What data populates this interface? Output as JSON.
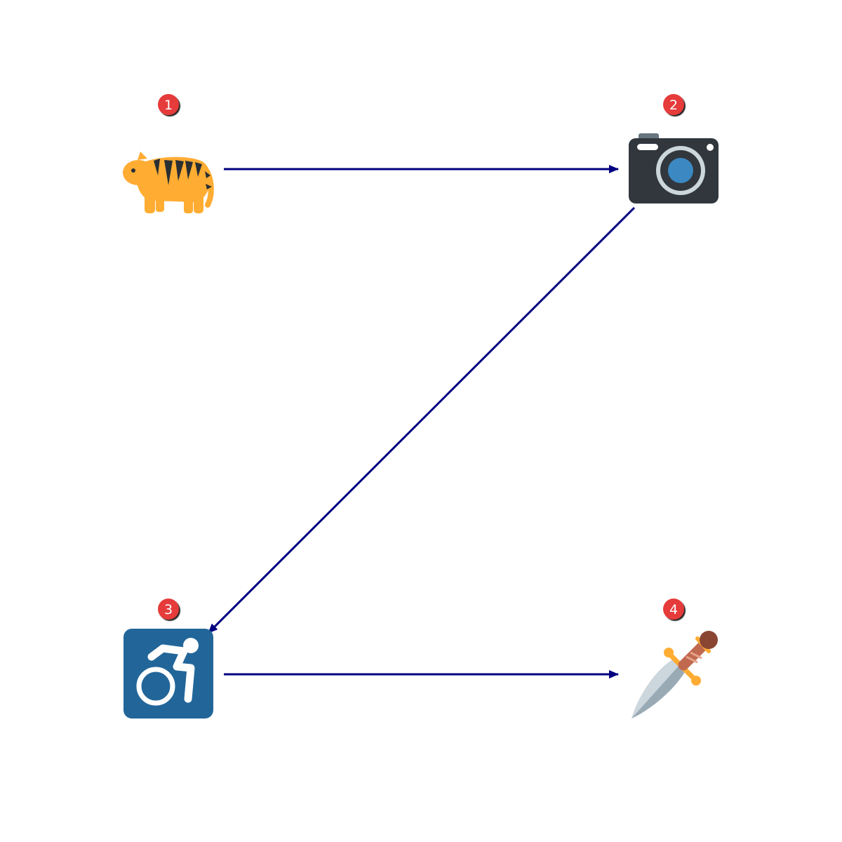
{
  "diagram": {
    "background": "#ffffff",
    "arrow_color": "#000080",
    "badge_color": "#e63b3b",
    "nodes": [
      {
        "id": "1",
        "label": "1",
        "icon": "tiger-icon"
      },
      {
        "id": "2",
        "label": "2",
        "icon": "camera-icon"
      },
      {
        "id": "3",
        "label": "3",
        "icon": "motorized-wheelchair-icon"
      },
      {
        "id": "4",
        "label": "4",
        "icon": "dagger-icon"
      }
    ],
    "edges": [
      {
        "from": "1",
        "to": "2"
      },
      {
        "from": "2",
        "to": "3"
      },
      {
        "from": "3",
        "to": "4"
      }
    ]
  }
}
